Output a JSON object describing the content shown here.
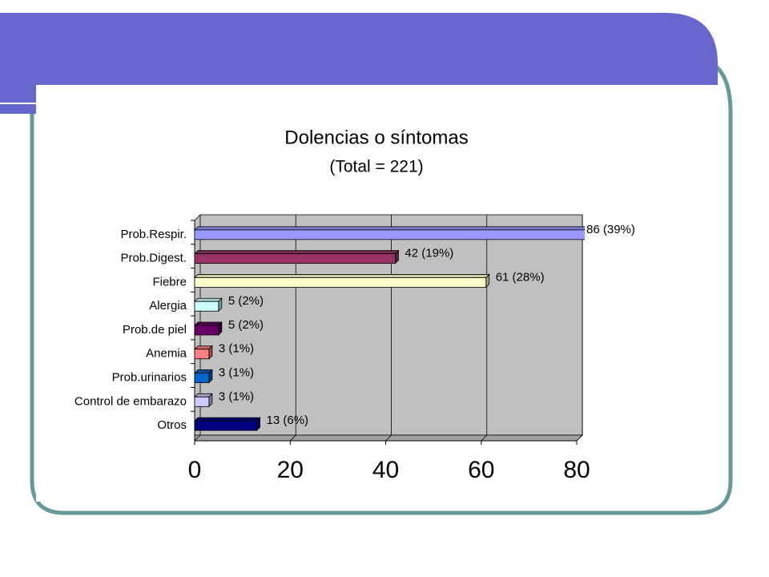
{
  "chart_data": {
    "type": "bar",
    "orientation": "horizontal",
    "title": "Dolencias o síntomas",
    "subtitle": "(Total = 221)",
    "categories": [
      "Prob.Respir.",
      "Prob.Digest.",
      "Fiebre",
      "Alergia",
      "Prob.de piel",
      "Anemia",
      "Prob.urinarios",
      "Control de embarazo",
      "Otros"
    ],
    "values": [
      86,
      42,
      61,
      5,
      5,
      3,
      3,
      3,
      13
    ],
    "value_labels": [
      "86 (39%)",
      "42 (19%)",
      "61 (28%)",
      "5 (2%)",
      "5 (2%)",
      "3 (1%)",
      "3 (1%)",
      "3 (1%)",
      "13 (6%)"
    ],
    "colors": [
      "#9999ff",
      "#993366",
      "#ffffcc",
      "#ccffff",
      "#660066",
      "#ff8080",
      "#0066cc",
      "#ccccff",
      "#000080"
    ],
    "xlim": [
      0,
      80
    ],
    "xticks": [
      0,
      20,
      40,
      60,
      80
    ],
    "grid": true
  }
}
